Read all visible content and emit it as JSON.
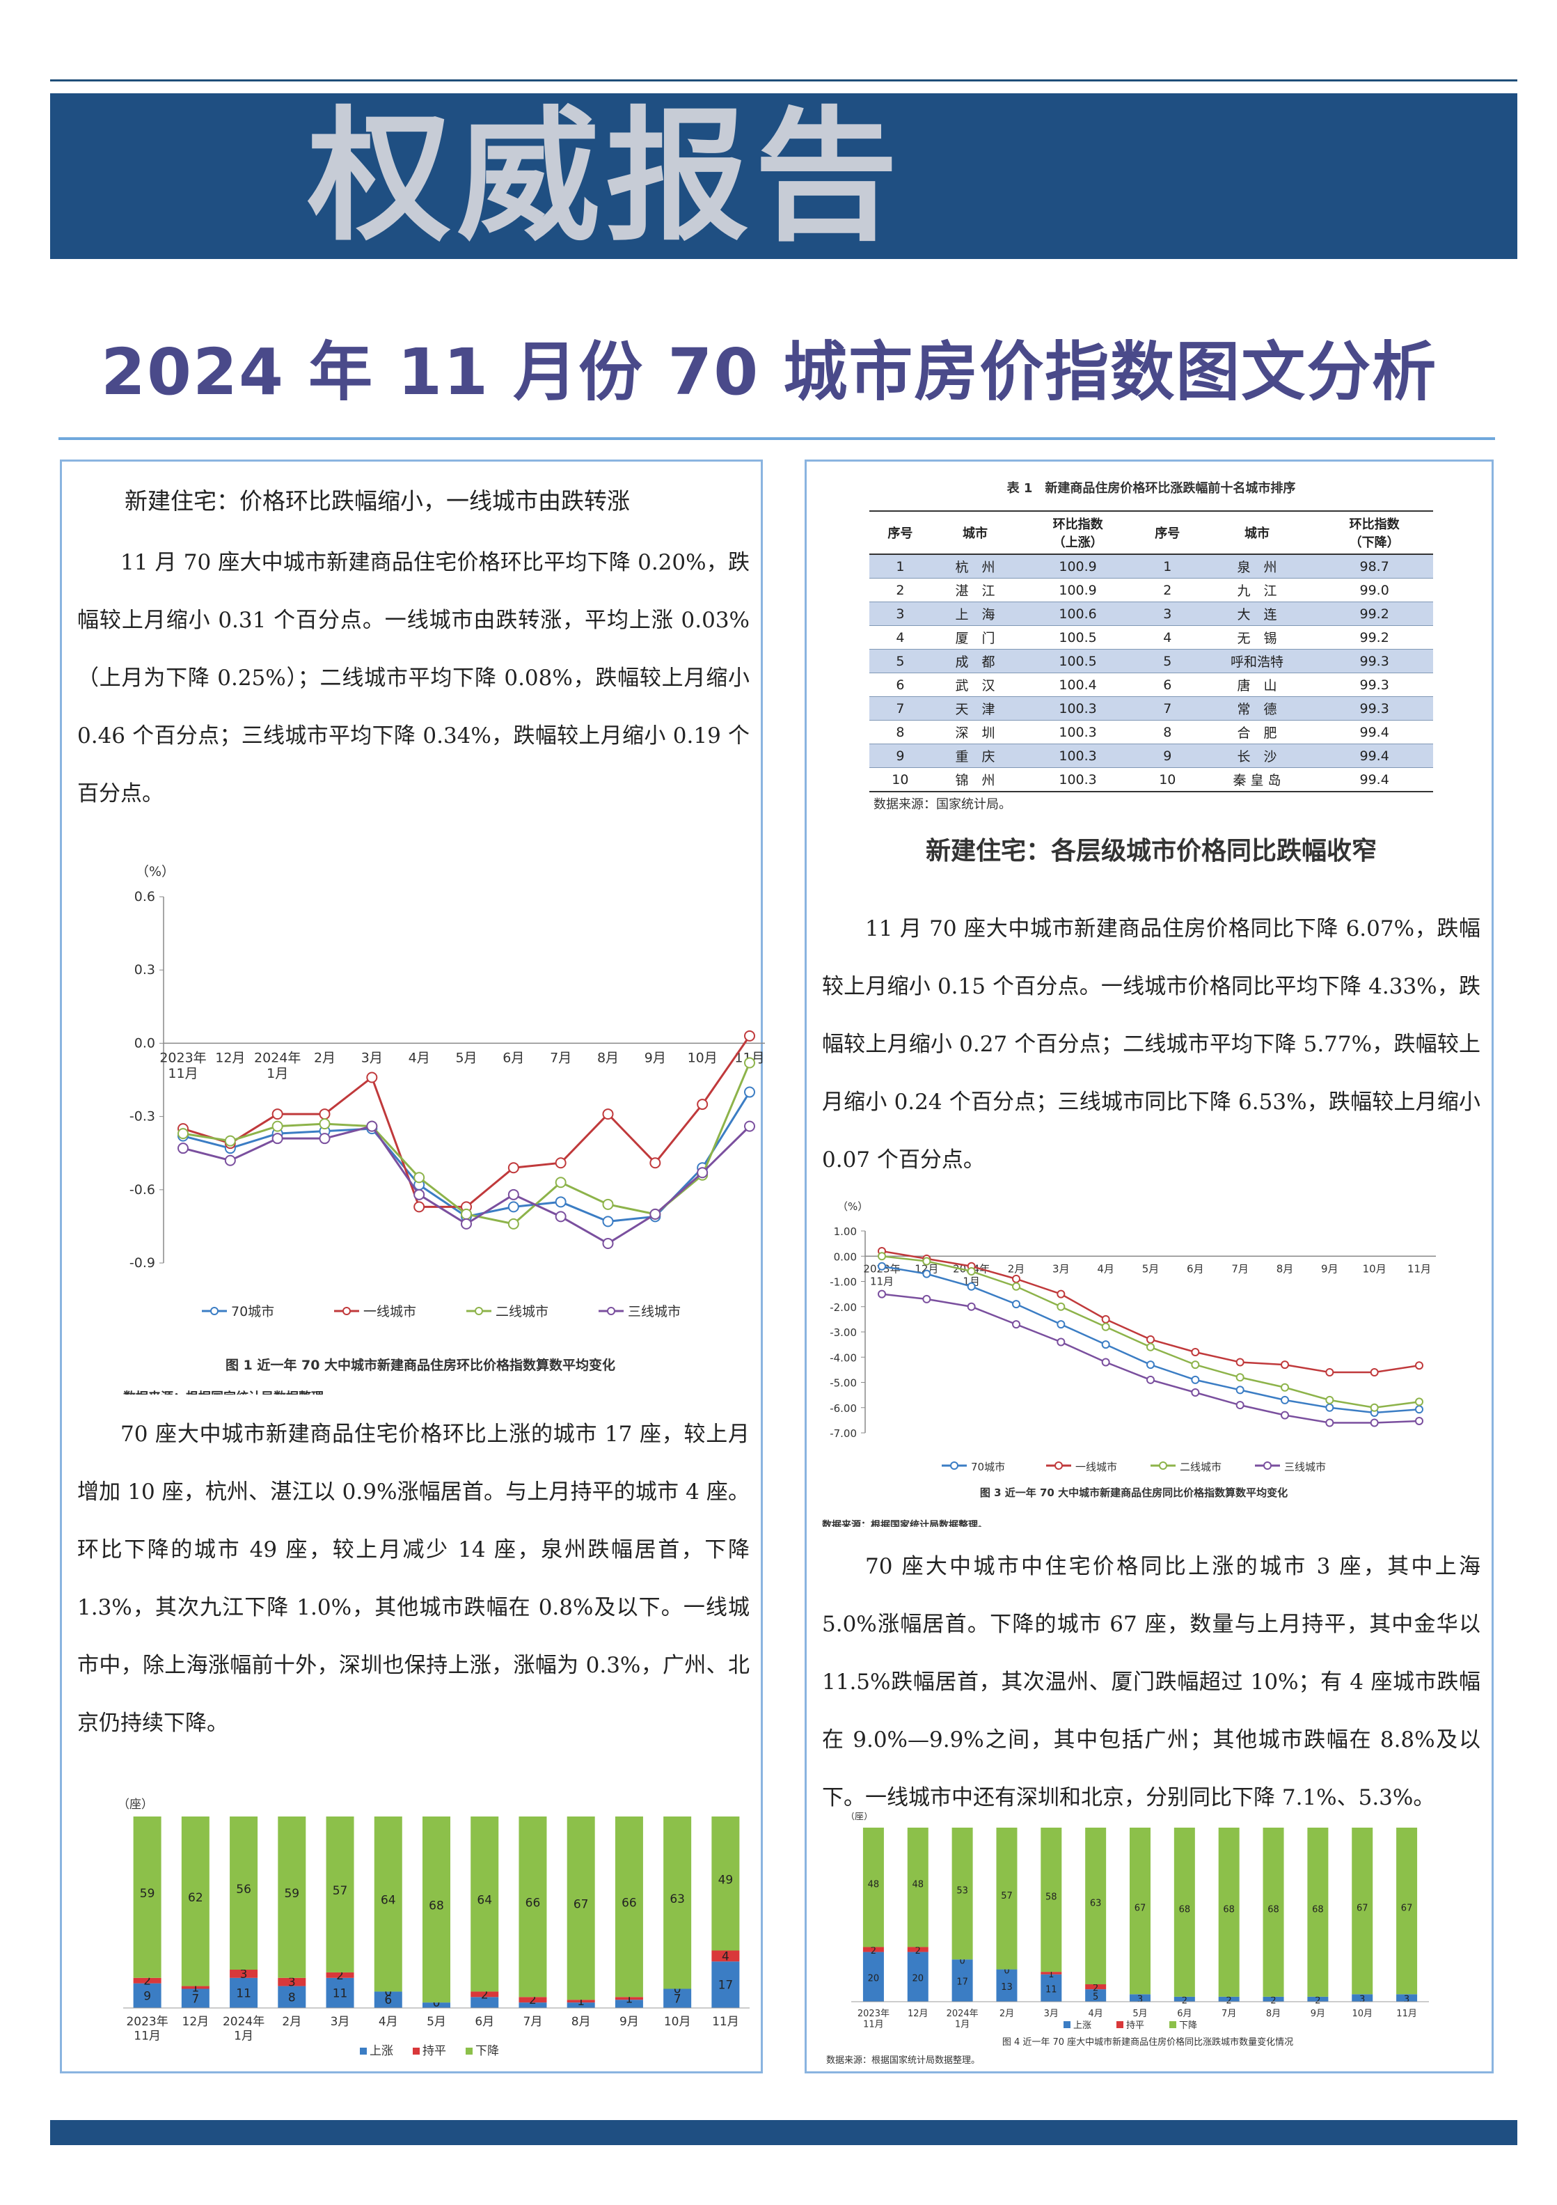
{
  "banner": {
    "title": "权威报告"
  },
  "subtitle": "2024 年 11 月份 70 城市房价指数图文分析",
  "left": {
    "heading": "新建住宅：价格环比跌幅缩小，一线城市由跌转涨",
    "para1": "11 月 70 座大中城市新建商品住宅价格环比平均下降 0.20%，跌幅较上月缩小 0.31 个百分点。一线城市由跌转涨，平均上涨 0.03%（上月为下降 0.25%）；二线城市平均下降 0.08%，跌幅较上月缩小 0.46 个百分点；三线城市平均下降 0.34%，跌幅较上月缩小 0.19 个百分点。",
    "para2": "70 座大中城市新建商品住宅价格环比上涨的城市 17 座，较上月增加 10 座，杭州、湛江以 0.9%涨幅居首。与上月持平的城市 4 座。环比下降的城市 49 座，较上月减少 14 座，泉州跌幅居首，下降 1.3%，其次九江下降 1.0%，其他城市跌幅在 0.8%及以下。一线城市中，除上海涨幅前十外，深圳也保持上涨，涨幅为 0.3%，广州、北京仍持续下降。"
  },
  "right": {
    "heading": "新建住宅：各层级城市价格同比跌幅收窄",
    "para1": "11 月 70 座大中城市新建商品住房价格同比下降 6.07%，跌幅较上月缩小 0.15 个百分点。一线城市价格同比平均下降 4.33%，跌幅较上月缩小 0.27 个百分点；二线城市平均下降 5.77%，跌幅较上月缩小 0.24 个百分点；三线城市同比下降 6.53%，跌幅较上月缩小 0.07 个百分点。",
    "para2": "70 座大中城市中住宅价格同比上涨的城市 3 座，其中上海 5.0%涨幅居首。下降的城市 67 座，数量与上月持平，其中金华以 11.5%跌幅居首，其次温州、厦门跌幅超过 10%；有 4 座城市跌幅在 9.0%—9.9%之间，其中包括广州；其他城市跌幅在 8.8%及以下。一线城市中还有深圳和北京，分别同比下降 7.1%、5.3%。"
  },
  "table": {
    "caption": "表 1　新建商品住房价格环比涨跌幅前十名城市排序",
    "headers": [
      "序号",
      "城市",
      "环比指数\n（上涨）",
      "序号",
      "城市",
      "环比指数\n（下降）"
    ],
    "rows": [
      [
        "1",
        "杭　州",
        "100.9",
        "1",
        "泉　州",
        "98.7"
      ],
      [
        "2",
        "湛　江",
        "100.9",
        "2",
        "九　江",
        "99.0"
      ],
      [
        "3",
        "上　海",
        "100.6",
        "3",
        "大　连",
        "99.2"
      ],
      [
        "4",
        "厦　门",
        "100.5",
        "4",
        "无　锡",
        "99.2"
      ],
      [
        "5",
        "成　都",
        "100.5",
        "5",
        "呼和浩特",
        "99.3"
      ],
      [
        "6",
        "武　汉",
        "100.4",
        "6",
        "唐　山",
        "99.3"
      ],
      [
        "7",
        "天　津",
        "100.3",
        "7",
        "常　德",
        "99.3"
      ],
      [
        "8",
        "深　圳",
        "100.3",
        "8",
        "合　肥",
        "99.4"
      ],
      [
        "9",
        "重　庆",
        "100.3",
        "9",
        "长　沙",
        "99.4"
      ],
      [
        "10",
        "锦　州",
        "100.3",
        "10",
        "秦 皇 岛",
        "99.4"
      ]
    ],
    "source": "数据来源：国家统计局。"
  },
  "chart_data": [
    {
      "type": "line",
      "title": "图 1 近一年 70 大中城市新建商品住房环比价格指数算数平均变化",
      "source": "数据来源：根据国家统计局数据整理。",
      "ylabel": "（%）",
      "ylim": [
        -0.9,
        0.6
      ],
      "yticks": [
        "0.6",
        "0.3",
        "0.0",
        "-0.3",
        "-0.6",
        "-0.9"
      ],
      "categories": [
        "2023年\n11月",
        "12月",
        "2024年\n1月",
        "2月",
        "3月",
        "4月",
        "5月",
        "6月",
        "7月",
        "8月",
        "9月",
        "10月",
        "11月"
      ],
      "series": [
        {
          "name": "70城市",
          "color": "#3b7dc4",
          "values": [
            -0.38,
            -0.43,
            -0.37,
            -0.36,
            -0.35,
            -0.58,
            -0.71,
            -0.67,
            -0.65,
            -0.73,
            -0.71,
            -0.51,
            -0.2
          ]
        },
        {
          "name": "一线城市",
          "color": "#c0393b",
          "values": [
            -0.35,
            -0.41,
            -0.29,
            -0.29,
            -0.14,
            -0.67,
            -0.67,
            -0.51,
            -0.49,
            -0.29,
            -0.49,
            -0.25,
            0.03
          ]
        },
        {
          "name": "二线城市",
          "color": "#8db34a",
          "values": [
            -0.37,
            -0.4,
            -0.34,
            -0.33,
            -0.34,
            -0.55,
            -0.7,
            -0.74,
            -0.57,
            -0.66,
            -0.7,
            -0.54,
            -0.08
          ]
        },
        {
          "name": "三线城市",
          "color": "#7a4f9e",
          "values": [
            -0.43,
            -0.48,
            -0.39,
            -0.39,
            -0.34,
            -0.62,
            -0.74,
            -0.62,
            -0.71,
            -0.82,
            -0.7,
            -0.53,
            -0.34
          ]
        }
      ]
    },
    {
      "type": "bar",
      "title": "",
      "ylabel": "（座）",
      "categories": [
        "2023年\n11月",
        "12月",
        "2024年\n1月",
        "2月",
        "3月",
        "4月",
        "5月",
        "6月",
        "7月",
        "8月",
        "9月",
        "10月",
        "11月"
      ],
      "series": [
        {
          "name": "上涨",
          "color": "#3b7dc4",
          "values": [
            9,
            7,
            11,
            8,
            11,
            6,
            2,
            4,
            2,
            2,
            3,
            7,
            17
          ]
        },
        {
          "name": "持平",
          "color": "#d9383a",
          "values": [
            2,
            1,
            3,
            3,
            2,
            0,
            0,
            2,
            2,
            1,
            1,
            0,
            4
          ]
        },
        {
          "name": "下降",
          "color": "#8cc04a",
          "values": [
            59,
            62,
            56,
            59,
            57,
            64,
            68,
            64,
            66,
            67,
            66,
            63,
            49
          ]
        }
      ],
      "labels": {
        "上涨": [
          "9",
          "7",
          "11",
          "8",
          "11",
          "6",
          "",
          "",
          "",
          "",
          "",
          "7",
          "17"
        ],
        "持平": [
          "2",
          "1",
          "3",
          "3",
          "2",
          "0",
          "0",
          "2",
          "2",
          "1",
          "1",
          "0",
          "4"
        ],
        "下降": [
          "59",
          "62",
          "56",
          "59",
          "57",
          "64",
          "68",
          "64",
          "66",
          "67",
          "66",
          "63",
          "49"
        ]
      }
    },
    {
      "type": "line",
      "title": "图 3 近一年 70 大中城市新建商品住房同比价格指数算数平均变化",
      "source": "数据来源：根据国家统计局数据整理。",
      "ylabel": "（%）",
      "ylim": [
        -7.0,
        1.0
      ],
      "yticks": [
        "1.00",
        "0.00",
        "-1.00",
        "-2.00",
        "-3.00",
        "-4.00",
        "-5.00",
        "-6.00",
        "-7.00"
      ],
      "categories": [
        "2023年\n11月",
        "12月",
        "2024年\n1月",
        "2月",
        "3月",
        "4月",
        "5月",
        "6月",
        "7月",
        "8月",
        "9月",
        "10月",
        "11月"
      ],
      "series": [
        {
          "name": "70城市",
          "color": "#3b7dc4",
          "values": [
            -0.4,
            -0.7,
            -1.2,
            -1.9,
            -2.7,
            -3.5,
            -4.3,
            -4.9,
            -5.3,
            -5.7,
            -6.0,
            -6.2,
            -6.07
          ]
        },
        {
          "name": "一线城市",
          "color": "#c0393b",
          "values": [
            0.2,
            -0.1,
            -0.4,
            -0.9,
            -1.5,
            -2.5,
            -3.3,
            -3.8,
            -4.2,
            -4.3,
            -4.6,
            -4.6,
            -4.33
          ]
        },
        {
          "name": "二线城市",
          "color": "#8db34a",
          "values": [
            0.0,
            -0.2,
            -0.6,
            -1.2,
            -2.0,
            -2.8,
            -3.6,
            -4.3,
            -4.8,
            -5.2,
            -5.7,
            -6.0,
            -5.77
          ]
        },
        {
          "name": "三线城市",
          "color": "#7a4f9e",
          "values": [
            -1.5,
            -1.7,
            -2.0,
            -2.7,
            -3.4,
            -4.2,
            -4.9,
            -5.4,
            -5.9,
            -6.3,
            -6.6,
            -6.6,
            -6.53
          ]
        }
      ]
    },
    {
      "type": "bar",
      "title": "图 4 近一年 70 座大中城市新建商品住房价格同比涨跌城市数量变化情况",
      "source": "数据来源：根据国家统计局数据整理。",
      "ylabel": "（座）",
      "categories": [
        "2023年\n11月",
        "12月",
        "2024年\n1月",
        "2月",
        "3月",
        "4月",
        "5月",
        "6月",
        "7月",
        "8月",
        "9月",
        "10月",
        "11月"
      ],
      "series": [
        {
          "name": "上涨",
          "color": "#3b7dc4",
          "values": [
            20,
            20,
            17,
            13,
            11,
            5,
            3,
            2,
            2,
            2,
            2,
            3,
            3
          ]
        },
        {
          "name": "持平",
          "color": "#d9383a",
          "values": [
            2,
            2,
            0,
            0,
            1,
            2,
            0,
            0,
            0,
            0,
            0,
            0,
            0
          ]
        },
        {
          "name": "下降",
          "color": "#8cc04a",
          "values": [
            48,
            48,
            53,
            57,
            58,
            63,
            67,
            68,
            68,
            68,
            68,
            67,
            67
          ]
        }
      ],
      "labels": {
        "上涨": [
          "20",
          "20",
          "17",
          "13",
          "11",
          "5",
          "3",
          "2",
          "2",
          "2",
          "2",
          "3",
          "3"
        ],
        "持平": [
          "2",
          "2",
          "0",
          "0",
          "1",
          "2",
          "",
          "",
          "",
          "",
          "",
          "",
          ""
        ],
        "下降": [
          "48",
          "48",
          "53",
          "57",
          "58",
          "63",
          "67",
          "68",
          "68",
          "68",
          "68",
          "67",
          "67"
        ]
      }
    }
  ]
}
